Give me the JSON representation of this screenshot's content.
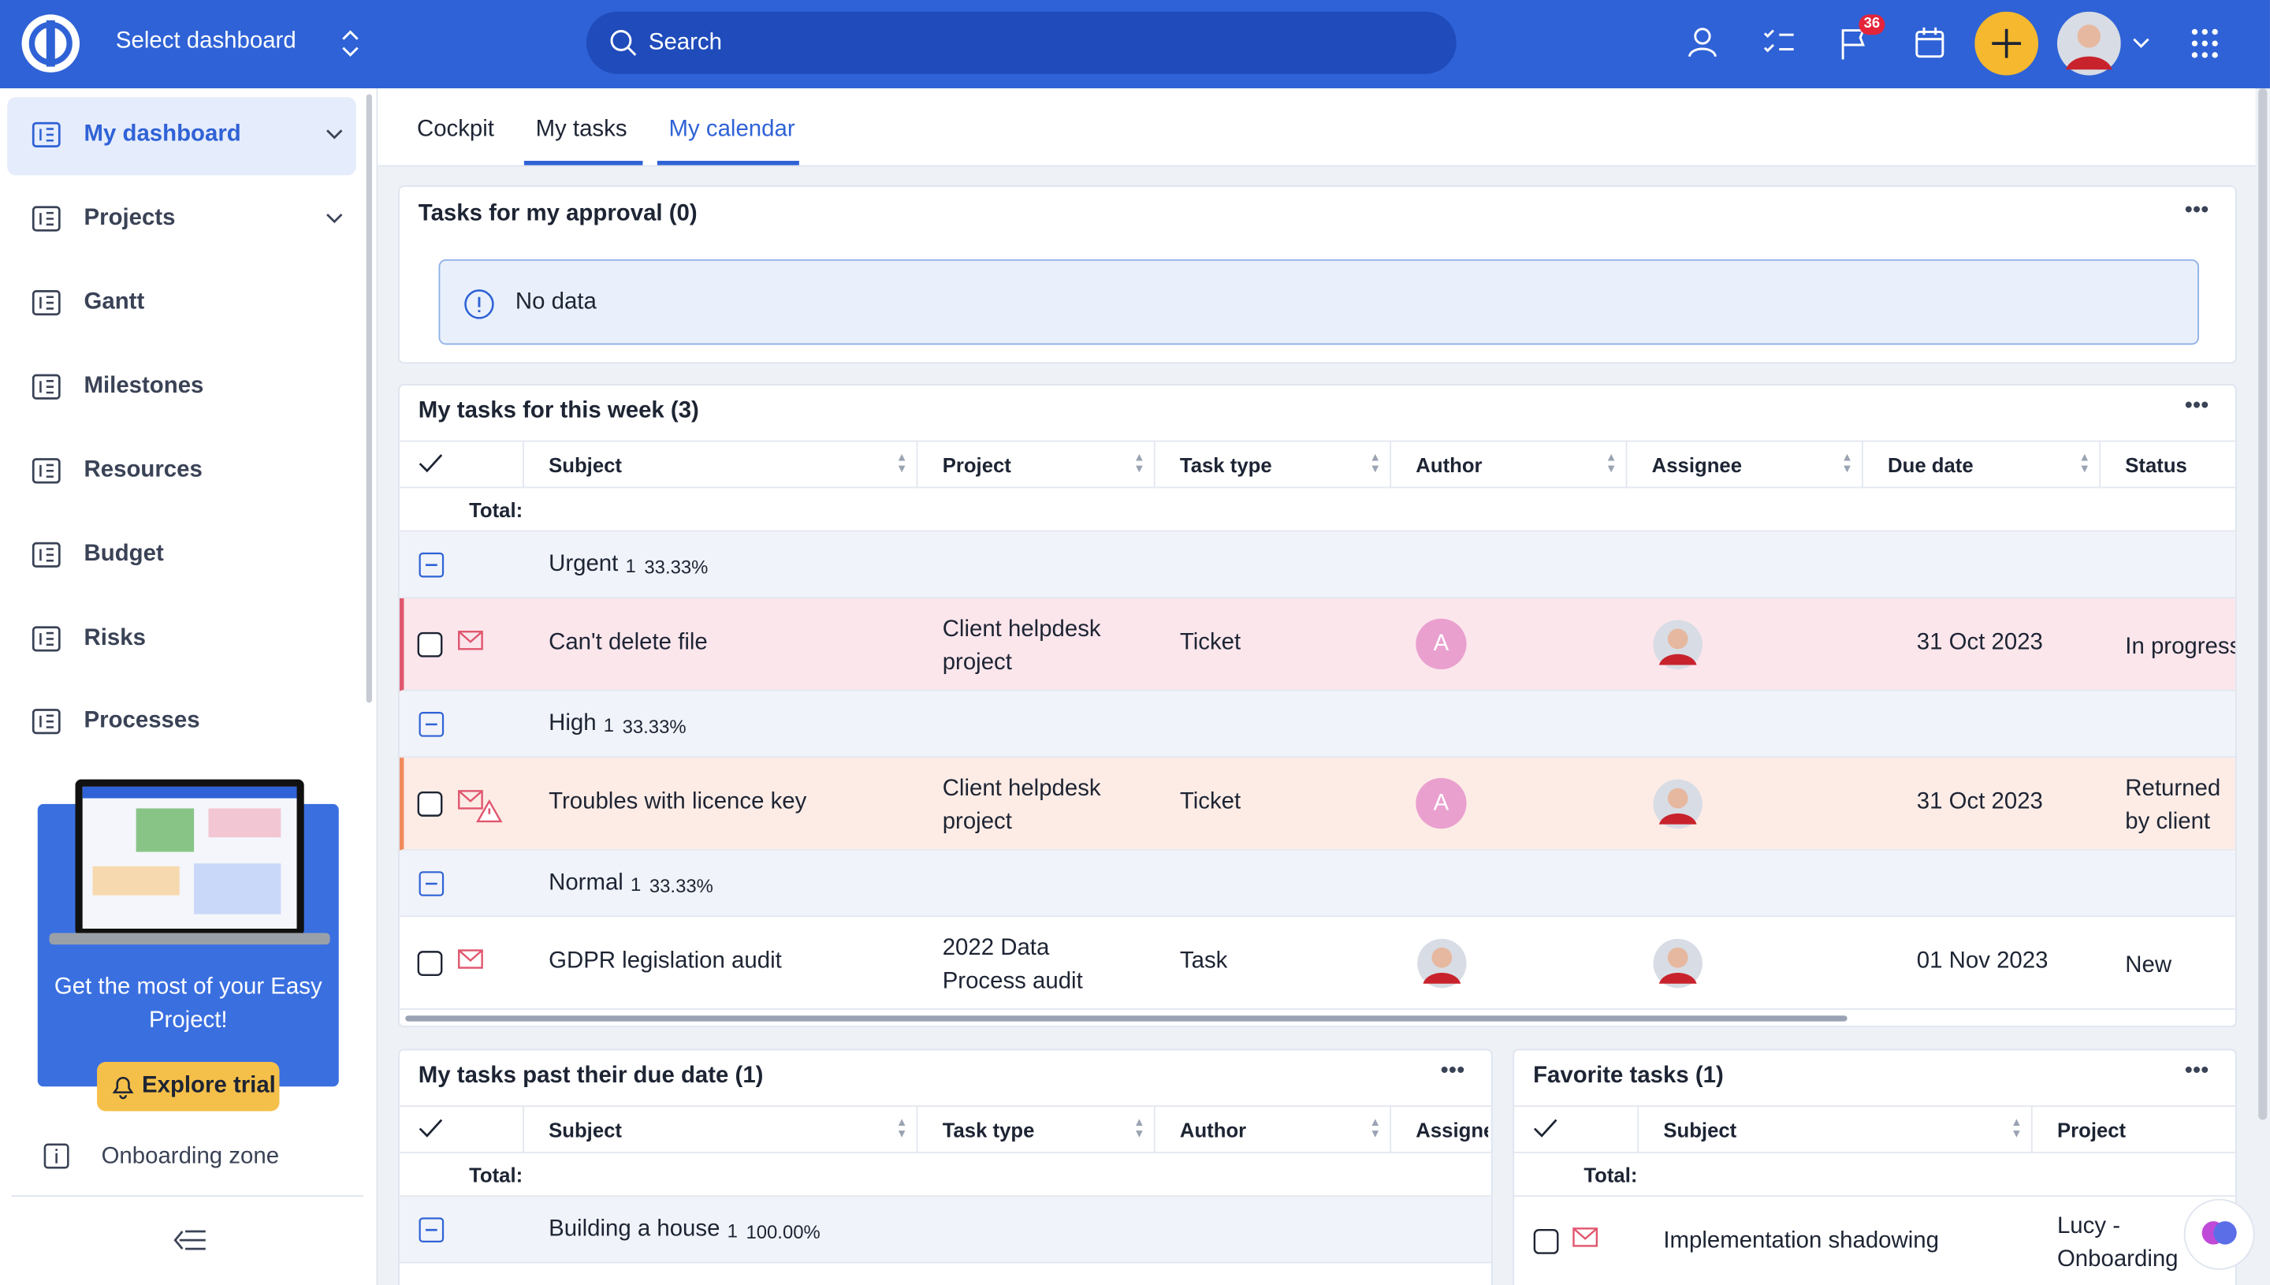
{
  "topbar": {
    "dashboard_select": "Select dashboard",
    "search": "Search",
    "notifications_badge": "36"
  },
  "sidebar": {
    "items": [
      "My dashboard",
      "Projects",
      "Gantt",
      "Milestones",
      "Resources",
      "Budget",
      "Risks",
      "Processes"
    ],
    "promo": {
      "text": "Get the most of your Easy Project!",
      "button": "Explore trial"
    },
    "onboarding": "Onboarding zone"
  },
  "tabs": [
    "Cockpit",
    "My tasks",
    "My calendar"
  ],
  "approval": {
    "title": "Tasks for my approval (0)",
    "empty": "No data"
  },
  "week": {
    "title": "My tasks for this week (3)",
    "columns": [
      "Subject",
      "Project",
      "Task type",
      "Author",
      "Assignee",
      "Due date",
      "Status"
    ],
    "total": "Total:",
    "groups": [
      {
        "name": "Urgent",
        "count": "1",
        "percent": "33.33%",
        "rows": [
          {
            "subject": "Can't delete file",
            "project": "Client helpdesk project",
            "type": "Ticket",
            "author": "A",
            "due": "31 Oct 2023",
            "status": "In progress"
          }
        ]
      },
      {
        "name": "High",
        "count": "1",
        "percent": "33.33%",
        "rows": [
          {
            "subject": "Troubles with licence key",
            "project": "Client helpdesk project",
            "type": "Ticket",
            "author": "A",
            "due": "31 Oct 2023",
            "status": "Returned by client"
          }
        ]
      },
      {
        "name": "Normal",
        "count": "1",
        "percent": "33.33%",
        "rows": [
          {
            "subject": "GDPR legislation audit",
            "project": "2022 Data Process audit",
            "type": "Task",
            "due": "01 Nov 2023",
            "status": "New"
          }
        ]
      }
    ]
  },
  "past_due": {
    "title": "My tasks past their due date (1)",
    "columns": [
      "Subject",
      "Task type",
      "Author",
      "Assignee"
    ],
    "total": "Total:",
    "groups": [
      {
        "name": "Building a house",
        "count": "1",
        "percent": "100.00%"
      }
    ]
  },
  "favorite": {
    "title": "Favorite tasks (1)",
    "columns": [
      "Subject",
      "Project"
    ],
    "total": "Total:",
    "rows": [
      {
        "subject": "Implementation shadowing",
        "project": "Lucy - Onboarding"
      }
    ]
  }
}
